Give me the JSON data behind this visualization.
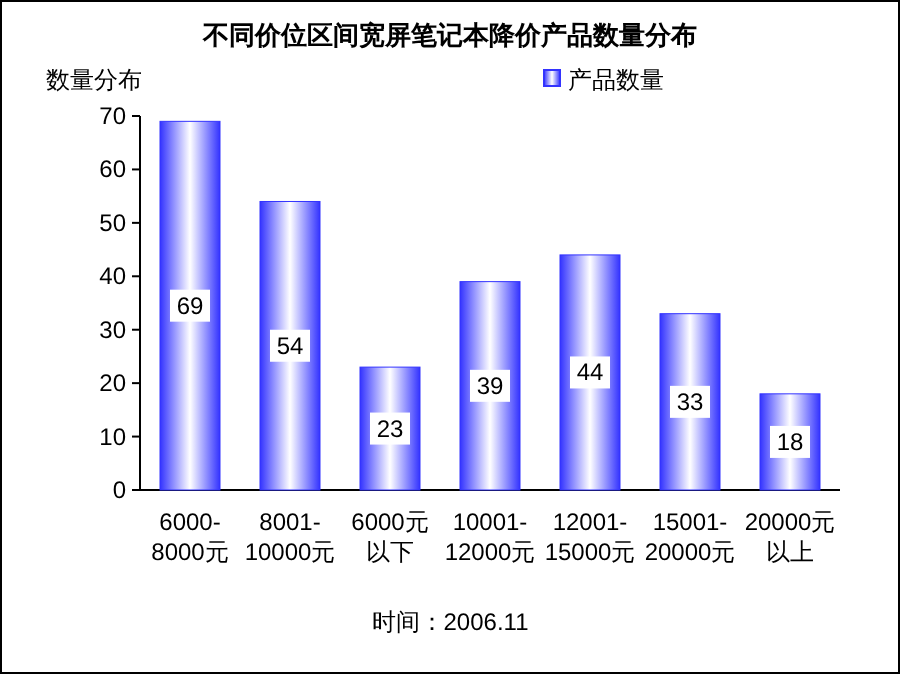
{
  "chart_data": {
    "type": "bar",
    "title": "不同价位区间宽屏笔记本降价产品数量分布",
    "ylabel": "数量分布",
    "categories": [
      "6000-\n8000元",
      "8001-\n10000元",
      "6000元以下",
      "10001-\n12000元",
      "12001-\n15000元",
      "15001-\n20000元",
      "20000元以上"
    ],
    "series": [
      {
        "name": "产品数量",
        "color": "#3333ff",
        "values": [
          69,
          54,
          23,
          39,
          44,
          33,
          18
        ]
      }
    ],
    "ylim": [
      0,
      70
    ],
    "yticks": [
      0,
      10,
      20,
      30,
      40,
      50,
      60,
      70
    ],
    "grid": false,
    "legend": "top right",
    "data_labels": true,
    "annotations": [
      "时间：2006.11"
    ]
  }
}
